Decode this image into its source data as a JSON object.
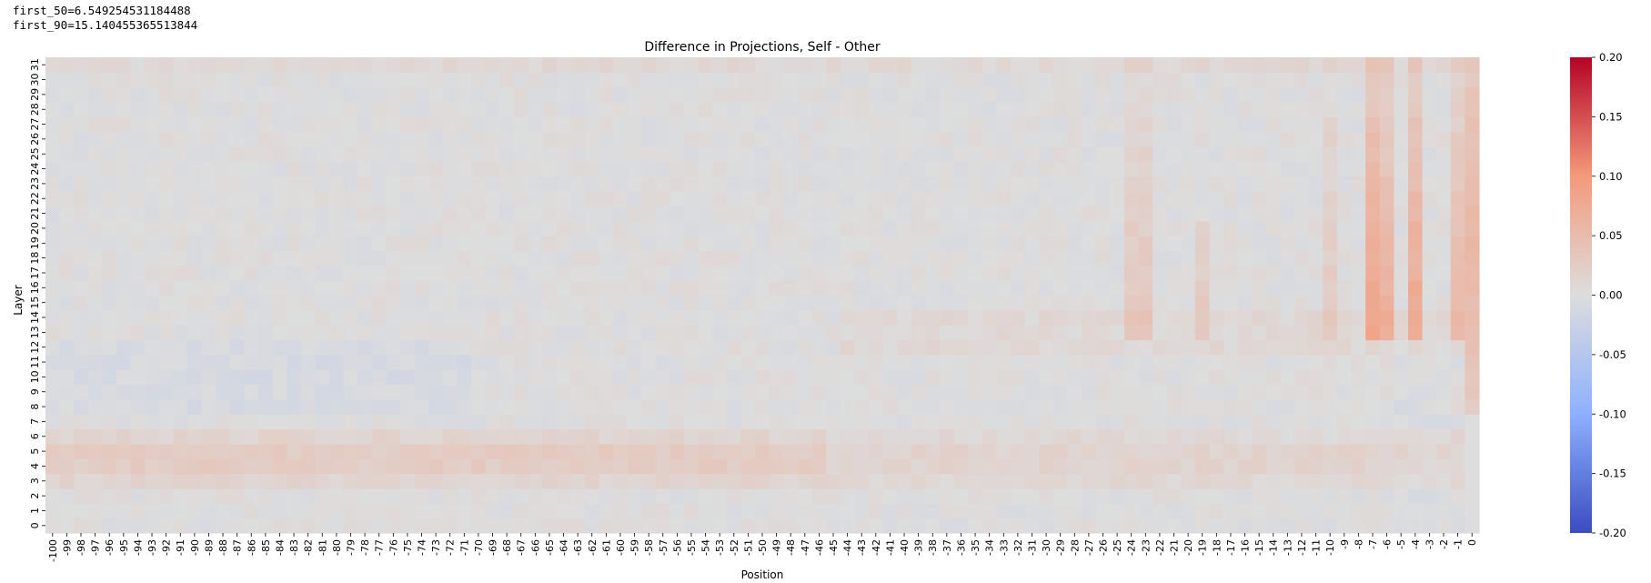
{
  "stats": {
    "first_50": "first_50=6.549254531184488",
    "first_90": "first_90=15.140455365513844"
  },
  "colors": {
    "cmap": "coolwarm",
    "neutral": "#dddddd",
    "max": "#b40426",
    "min": "#3b4cc0"
  },
  "chart_data": {
    "type": "heatmap",
    "title": "Difference in Projections, Self - Other",
    "xlabel": "Position",
    "ylabel": "Layer",
    "x_range": [
      -100,
      0
    ],
    "y_range": [
      0,
      31
    ],
    "colorbar": {
      "vmin": -0.2,
      "vmax": 0.2,
      "ticks": [
        "0.20",
        "0.15",
        "0.10",
        "0.05",
        "0.00",
        "-0.05",
        "-0.10",
        "-0.15",
        "-0.20"
      ]
    },
    "features": {
      "layer4_band": {
        "layers": [
          3,
          6
        ],
        "value": 0.025
      },
      "column_peaks": [
        {
          "position": -7,
          "layers": [
            13,
            31
          ],
          "peak": 0.08,
          "peak_layer": 16
        },
        {
          "position": -6,
          "layers": [
            13,
            31
          ],
          "peak": 0.065,
          "peak_layer": 15
        },
        {
          "position": -4,
          "layers": [
            13,
            31
          ],
          "peak": 0.075,
          "peak_layer": 15
        },
        {
          "position": -1,
          "layers": [
            13,
            31
          ],
          "peak": 0.05,
          "peak_layer": 15
        },
        {
          "position": 0,
          "layers": [
            8,
            31
          ],
          "peak": 0.055,
          "peak_layer": 20
        },
        {
          "position": -10,
          "layers": [
            13,
            31
          ],
          "peak": 0.025,
          "peak_layer": 15
        },
        {
          "position": -23,
          "layers": [
            13,
            31
          ],
          "peak": 0.03,
          "peak_layer": 15
        },
        {
          "position": -24,
          "layers": [
            13,
            31
          ],
          "peak": 0.03,
          "peak_layer": 15
        },
        {
          "position": -19,
          "layers": [
            13,
            20
          ],
          "peak": 0.025,
          "peak_layer": 15
        }
      ]
    }
  }
}
